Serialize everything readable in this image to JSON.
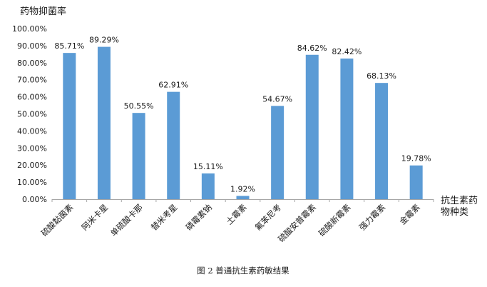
{
  "chart_data": {
    "type": "bar",
    "ylabel": "药物抑菌率",
    "xlabel_lines": [
      "抗生素药",
      "物种类"
    ],
    "caption": "图 2  普通抗生素药敏结果",
    "ylim": [
      0,
      100
    ],
    "ytick_step": 10,
    "yticks": [
      "0.00%",
      "10.00%",
      "20.00%",
      "30.00%",
      "40.00%",
      "50.00%",
      "60.00%",
      "70.00%",
      "80.00%",
      "90.00%",
      "100.00%"
    ],
    "categories": [
      "硫酸黏菌素",
      "阿米卡星",
      "单硫酸卡那",
      "替米考星",
      "磷霉素钠",
      "土霉素",
      "氟苯尼考",
      "硫酸安普霉素",
      "硫酸新霉素",
      "强力霉素",
      "金霉素"
    ],
    "values": [
      85.71,
      89.29,
      50.55,
      62.91,
      15.11,
      1.92,
      54.67,
      84.62,
      82.42,
      68.13,
      19.78
    ],
    "value_labels": [
      "85.71%",
      "89.29%",
      "50.55%",
      "62.91%",
      "15.11%",
      "1.92%",
      "54.67%",
      "84.62%",
      "82.42%",
      "68.13%",
      "19.78%"
    ],
    "bar_color": "#5b9bd5",
    "axis_color": "#a6a6a6",
    "grid": false,
    "legend": "none"
  }
}
